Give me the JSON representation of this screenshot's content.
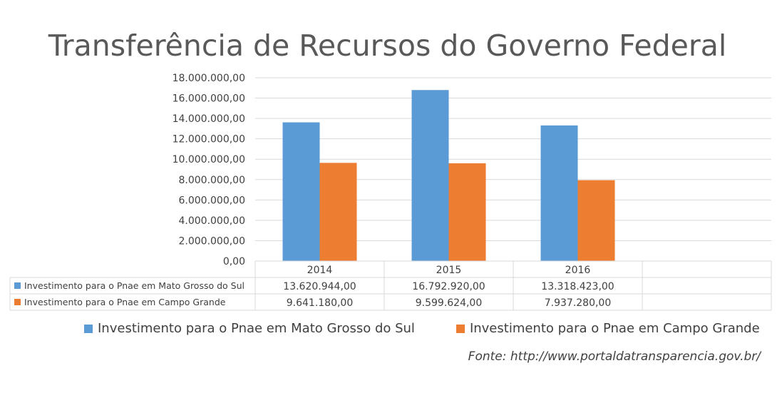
{
  "chart_data": {
    "type": "bar",
    "title": "Transferência de Recursos do Governo Federal",
    "categories": [
      "2014",
      "2015",
      "2016"
    ],
    "series": [
      {
        "name": "Investimento para o Pnae em Mato Grosso do Sul",
        "values": [
          13620944.0,
          16792920.0,
          13318423.0
        ],
        "display": [
          "13.620.944,00",
          "16.792.920,00",
          "13.318.423,00"
        ],
        "color": "#5B9BD5"
      },
      {
        "name": "Investimento para o Pnae em Campo Grande",
        "values": [
          9641180.0,
          9599624.0,
          7937280.0
        ],
        "display": [
          "9.641.180,00",
          "9.599.624,00",
          "7.937.280,00"
        ],
        "color": "#ED7D31"
      }
    ],
    "ylim": [
      0,
      18000000
    ],
    "yticks": [
      "0,00",
      "2.000.000,00",
      "4.000.000,00",
      "6.000.000,00",
      "8.000.000,00",
      "10.000.000,00",
      "12.000.000,00",
      "14.000.000,00",
      "16.000.000,00",
      "18.000.000,00"
    ],
    "ytick_values": [
      0,
      2000000,
      4000000,
      6000000,
      8000000,
      10000000,
      12000000,
      14000000,
      16000000,
      18000000
    ],
    "grid": true,
    "data_table": true,
    "legend_position": "bottom"
  },
  "source": "Fonte: http://www.portaldatransparencia.gov.br/"
}
